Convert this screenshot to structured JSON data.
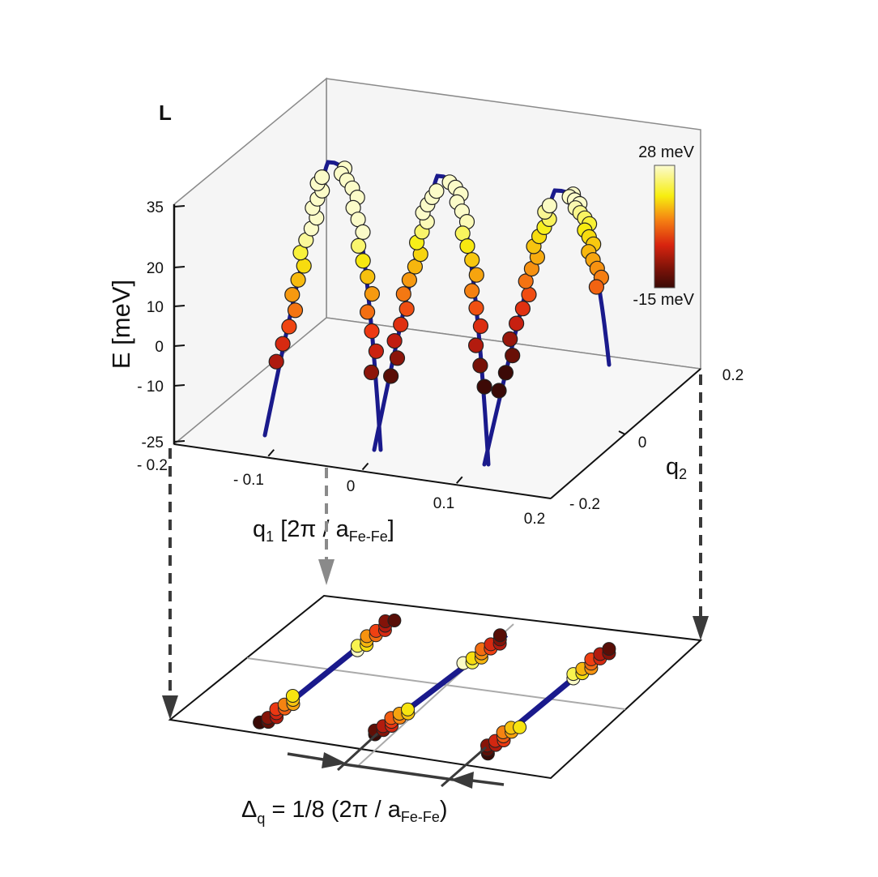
{
  "chart_data": {
    "type": "scatter",
    "panel_label": "L",
    "title": "",
    "zlabel": "E [meV]",
    "xlabel": "q1 [2π / aFe-Fe]",
    "xlabel_parts": {
      "main": "q",
      "sub1": "1",
      "rest": " [2π / a",
      "sub2": "Fe-Fe",
      "close": "]"
    },
    "ylabel_parts": {
      "main": "q",
      "sub1": "2"
    },
    "z_ticks": [
      "35",
      "20",
      "10",
      "0",
      "- 10",
      "-25"
    ],
    "z_tick_values": [
      35,
      20,
      10,
      0,
      -10,
      -25
    ],
    "zlim": [
      -25,
      35
    ],
    "x_ticks": [
      "- 0.2",
      "- 0.1",
      "0",
      "0.1",
      "0.2"
    ],
    "x_tick_values": [
      -0.2,
      -0.1,
      0,
      0.1,
      0.2
    ],
    "xlim": [
      -0.2,
      0.2
    ],
    "y_ticks": [
      "- 0.2",
      "0",
      "0.2"
    ],
    "y_tick_values": [
      -0.2,
      0,
      0.2
    ],
    "ylim": [
      -0.2,
      0.2
    ],
    "colorbar": {
      "max_label": "28 meV",
      "min_label": "-15 meV",
      "max": 28,
      "min": -15,
      "colormap": [
        "#3a0a06",
        "#7a1208",
        "#c41e10",
        "#ee3a12",
        "#f57f12",
        "#f7b40e",
        "#f7ee10",
        "#fbfbc8"
      ]
    },
    "curve_color": "#1a1a8c",
    "dispersion_branches": [
      {
        "name": "branch-1",
        "apex_q1": -0.075,
        "apex_E": 35
      },
      {
        "name": "branch-2",
        "apex_q1": 0.05,
        "apex_E": 35
      },
      {
        "name": "branch-3",
        "apex_q1": 0.175,
        "apex_E": 35
      }
    ],
    "projection_annotation": {
      "parts": {
        "delta": "Δ",
        "sub": "q",
        "rest": " = 1/8 (2π / a",
        "sub2": "Fe-Fe",
        "close": ")"
      },
      "text": "Δq = 1/8 (2π / aFe-Fe)",
      "spacing": 0.125
    }
  }
}
